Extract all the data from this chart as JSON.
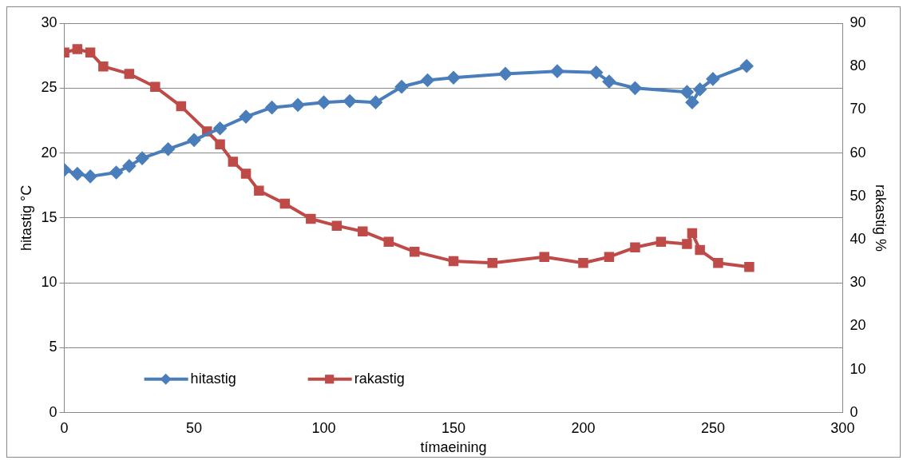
{
  "chart_data": {
    "type": "line",
    "xlabel": "tímaeining",
    "ylabel": "hitastig °C",
    "y2label": "rakastig %",
    "xlim": [
      0,
      300
    ],
    "xticks": [
      0,
      50,
      100,
      150,
      200,
      250,
      300
    ],
    "ylim": [
      0,
      30
    ],
    "yticks": [
      0,
      5,
      10,
      15,
      20,
      25,
      30
    ],
    "y2lim": [
      0,
      90
    ],
    "y2ticks": [
      0,
      10,
      20,
      30,
      40,
      50,
      60,
      70,
      80,
      90
    ],
    "grid": "y",
    "legend": "bottom left",
    "series": [
      {
        "name": "hitastig",
        "color": "#4a7ebb",
        "marker": "diamond",
        "x": [
          0,
          5,
          10,
          20,
          25,
          30,
          40,
          50,
          60,
          70,
          80,
          90,
          100,
          110,
          120,
          130,
          140,
          150,
          170,
          190,
          205,
          210,
          220,
          240,
          242,
          245,
          250,
          263
        ],
        "values": [
          18.7,
          18.4,
          18.2,
          18.5,
          19.0,
          19.6,
          20.3,
          21.0,
          21.9,
          22.8,
          23.5,
          23.7,
          23.9,
          24.0,
          23.9,
          25.1,
          25.6,
          25.8,
          26.1,
          26.3,
          26.2,
          25.5,
          25.0,
          24.7,
          23.9,
          24.9,
          25.7,
          26.7
        ]
      },
      {
        "name": "rakastig",
        "color": "#be4b48",
        "marker": "square",
        "axis": "y2",
        "x": [
          0,
          5,
          10,
          15,
          25,
          35,
          45,
          55,
          60,
          65,
          70,
          75,
          85,
          95,
          105,
          115,
          125,
          135,
          150,
          165,
          185,
          200,
          210,
          220,
          230,
          240,
          242,
          245,
          252,
          264
        ],
        "values": [
          83.2,
          84,
          83.2,
          80,
          78.3,
          75.3,
          70.8,
          65,
          62,
          58,
          55.2,
          51.3,
          48.3,
          44.8,
          43.2,
          41.9,
          39.5,
          37.2,
          35,
          34.6,
          36,
          34.6,
          36,
          38.2,
          39.5,
          39,
          41.5,
          37.6,
          34.6,
          33.7
        ]
      }
    ]
  }
}
